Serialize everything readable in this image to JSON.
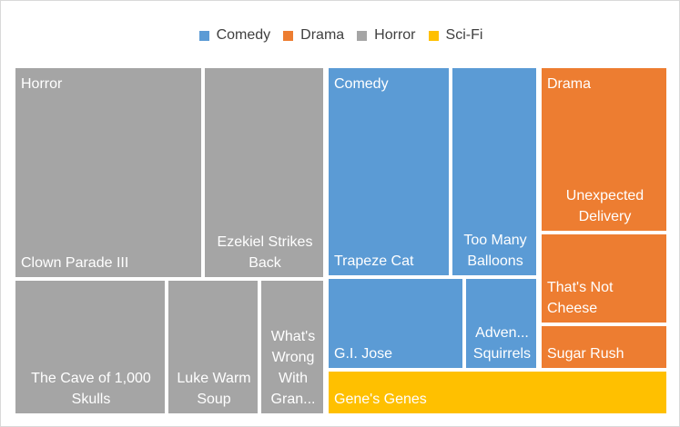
{
  "chart_data": {
    "type": "treemap",
    "legend": [
      {
        "name": "Comedy",
        "color": "#5b9bd5"
      },
      {
        "name": "Drama",
        "color": "#ed7d31"
      },
      {
        "name": "Horror",
        "color": "#a5a5a5"
      },
      {
        "name": "Sci-Fi",
        "color": "#ffc000"
      }
    ],
    "groups": [
      {
        "name": "Horror",
        "color": "#a5a5a5",
        "items": [
          {
            "label": "Clown Parade III",
            "value": 31.2
          },
          {
            "label": "Ezekiel Strikes Back",
            "value": 15.4
          },
          {
            "label": "The Cave of 1,000 Skulls",
            "value": 15.4
          },
          {
            "label": "Luke Warm Soup",
            "value": 8.6
          },
          {
            "label": "What's Wrong With Gran...",
            "value": 6.2
          }
        ]
      },
      {
        "name": "Comedy",
        "color": "#5b9bd5",
        "items": [
          {
            "label": "Trapeze Cat",
            "value": 17.6
          },
          {
            "label": "Too Many Balloons",
            "value": 12.1
          },
          {
            "label": "G.I. Jose",
            "value": 8.6
          },
          {
            "label": "Adven... Squirrels",
            "value": 5.2
          }
        ]
      },
      {
        "name": "Drama",
        "color": "#ed7d31",
        "items": [
          {
            "label": "Unexpected Delivery",
            "value": 12.0
          },
          {
            "label": "That's Not Cheese",
            "value": 7.0
          },
          {
            "label": "Sugar Rush",
            "value": 3.4
          }
        ]
      },
      {
        "name": "Sci-Fi",
        "color": "#ffc000",
        "items": [
          {
            "label": "Gene's Genes",
            "value": 7.8
          }
        ]
      }
    ]
  }
}
